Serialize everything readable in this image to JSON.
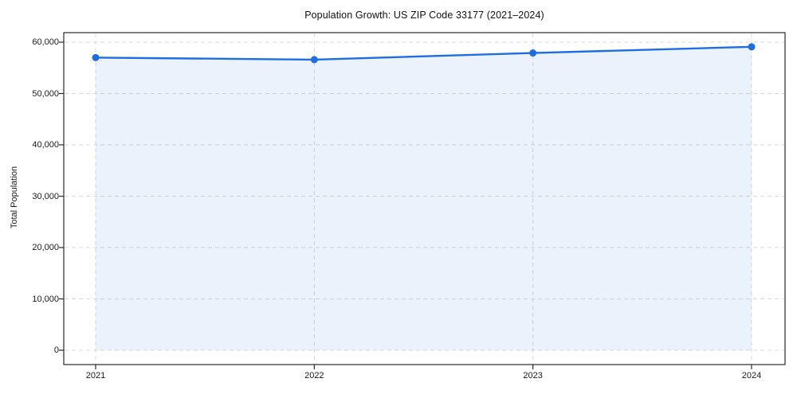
{
  "chart_data": {
    "type": "area",
    "title": "Population Growth: US ZIP Code 33177 (2021–2024)",
    "xlabel": "",
    "ylabel": "Total Population",
    "categories": [
      "2021",
      "2022",
      "2023",
      "2024"
    ],
    "series": [
      {
        "name": "Total Population",
        "values": [
          57000,
          56600,
          57900,
          59100
        ]
      }
    ],
    "ylim": [
      0,
      60000
    ],
    "y_ticks": [
      0,
      10000,
      20000,
      30000,
      40000,
      50000,
      60000
    ],
    "y_tick_labels": [
      "0",
      "10,000",
      "20,000",
      "30,000",
      "40,000",
      "50,000",
      "60,000"
    ],
    "grid": true,
    "legend": "none",
    "line_color": "#1e6ee1",
    "marker_color": "#1e6ee1",
    "fill_color": "#1e6ee1",
    "fill_opacity": 0.09,
    "grid_color": "#d9d9d9",
    "frame_color": "#2a2a2a",
    "text_color": "#1a1a1a"
  }
}
